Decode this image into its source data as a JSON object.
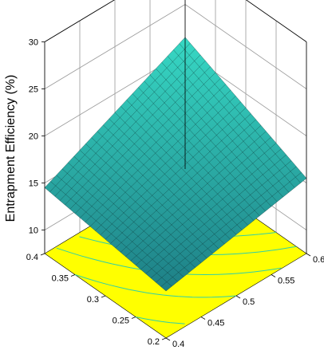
{
  "chart_data": {
    "type": "surface3d",
    "zlabel": "Entrapment Efficiency (%)",
    "zlim": [
      10,
      30
    ],
    "z_ticks": [
      "10",
      "15",
      "20",
      "25",
      "30"
    ],
    "left_axis_ticks": [
      "0.2",
      "0.25",
      "0.3",
      "0.35",
      "0.4"
    ],
    "right_axis_ticks": [
      "0.4",
      "0.45",
      "0.5",
      "0.55",
      "0.6"
    ],
    "left_axis_range": [
      0.2,
      0.4
    ],
    "right_axis_range": [
      0.4,
      0.6
    ],
    "surface_corners": [
      {
        "left": 0.4,
        "right": 0.4,
        "z": 14.5
      },
      {
        "left": 0.2,
        "right": 0.4,
        "z": 12.5
      },
      {
        "left": 0.2,
        "right": 0.6,
        "z": 15.5
      },
      {
        "left": 0.4,
        "right": 0.6,
        "z": 21.5
      }
    ],
    "grid": true,
    "colors": {
      "surface_low": "#1e7f86",
      "surface_high": "#37d8c4",
      "mesh": "#0b2f2f",
      "contour_floor": "#ffff00",
      "contour_line": "#2fd0a8",
      "grid": "#9a9a9a"
    }
  }
}
